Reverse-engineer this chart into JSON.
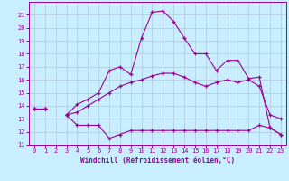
{
  "xlabel": "Windchill (Refroidissement éolien,°C)",
  "x": [
    0,
    1,
    2,
    3,
    4,
    5,
    6,
    7,
    8,
    9,
    10,
    11,
    12,
    13,
    14,
    15,
    16,
    17,
    18,
    19,
    20,
    21,
    22,
    23
  ],
  "line_bottom": [
    13.8,
    13.8,
    null,
    13.3,
    12.5,
    12.5,
    12.5,
    11.5,
    11.8,
    12.1,
    12.1,
    12.1,
    12.1,
    12.1,
    12.1,
    12.1,
    12.1,
    12.1,
    12.1,
    12.1,
    12.1,
    12.5,
    12.3,
    11.8
  ],
  "line_mid": [
    13.8,
    13.8,
    null,
    13.3,
    13.5,
    14.0,
    14.5,
    15.0,
    15.5,
    15.8,
    16.0,
    16.3,
    16.5,
    16.5,
    16.2,
    15.8,
    15.5,
    15.8,
    16.0,
    15.8,
    16.0,
    15.5,
    13.3,
    13.0
  ],
  "line_top": [
    13.8,
    13.8,
    null,
    13.3,
    14.1,
    14.5,
    15.0,
    16.7,
    17.0,
    16.4,
    19.2,
    21.2,
    21.3,
    20.5,
    19.2,
    18.0,
    18.0,
    16.7,
    17.5,
    17.5,
    16.1,
    16.2,
    12.3,
    11.8
  ],
  "line_color": "#990099",
  "bg_color": "#c8eeff",
  "grid_color": "#b0c8d8",
  "ylim_min": 11,
  "ylim_max": 22,
  "yticks": [
    11,
    12,
    13,
    14,
    15,
    16,
    17,
    18,
    19,
    20,
    21
  ],
  "xticks": [
    0,
    1,
    2,
    3,
    4,
    5,
    6,
    7,
    8,
    9,
    10,
    11,
    12,
    13,
    14,
    15,
    16,
    17,
    18,
    19,
    20,
    21,
    22,
    23
  ]
}
